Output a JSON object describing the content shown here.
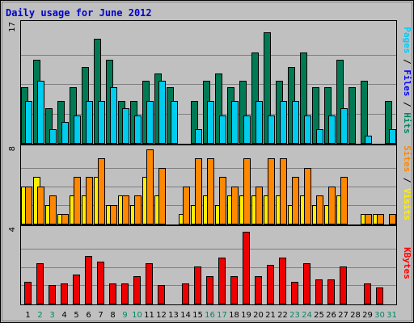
{
  "chart_data": {
    "type": "bar",
    "title": "Daily usage for June 2012",
    "categories": [
      "1",
      "2",
      "3",
      "4",
      "5",
      "6",
      "7",
      "8",
      "9",
      "10",
      "11",
      "12",
      "13",
      "14",
      "15",
      "16",
      "17",
      "18",
      "19",
      "20",
      "21",
      "22",
      "23",
      "24",
      "25",
      "26",
      "27",
      "28",
      "29",
      "30",
      "31"
    ],
    "weekend_days": [
      "2",
      "3",
      "9",
      "10",
      "16",
      "17",
      "23",
      "24",
      "30",
      "31"
    ],
    "panels": [
      {
        "name": "hits-files-pages",
        "ymax_label": "17",
        "ylim": [
          0,
          17
        ],
        "axis_label_parts": [
          {
            "text": "Pages",
            "color": "#00ccff"
          },
          {
            "text": " / ",
            "color": "#000000"
          },
          {
            "text": "Files",
            "color": "#0000ff"
          },
          {
            "text": " / ",
            "color": "#000000"
          },
          {
            "text": "Hits",
            "color": "#008866"
          }
        ],
        "series": [
          {
            "key": "hits",
            "color": "#007a55",
            "values": [
              8,
              12,
              5,
              6,
              8,
              11,
              15,
              12,
              6,
              6,
              9,
              10,
              8,
              0,
              6,
              9,
              10,
              8,
              9,
              13,
              16,
              9,
              11,
              13,
              8,
              8,
              12,
              8,
              9,
              0,
              6
            ]
          },
          {
            "key": "files",
            "color": "#00ccee",
            "values": [
              6,
              9,
              2,
              3,
              4,
              6,
              6,
              8,
              5,
              4,
              6,
              9,
              6,
              0,
              2,
              6,
              4,
              6,
              4,
              6,
              4,
              6,
              6,
              4,
              2,
              4,
              5,
              0,
              1,
              0,
              2
            ]
          }
        ]
      },
      {
        "name": "visits-sites",
        "ymax_label": "8",
        "ylim": [
          0,
          8
        ],
        "axis_label_parts": [
          {
            "text": "Sites",
            "color": "#ff8800"
          },
          {
            "text": " / ",
            "color": "#000000"
          },
          {
            "text": "Visits",
            "color": "#ffee00"
          }
        ],
        "series": [
          {
            "key": "visits",
            "color": "#ffee00",
            "values": [
              4,
              5,
              2,
              1,
              3,
              3,
              5,
              2,
              3,
              2,
              5,
              3,
              0,
              1,
              2,
              3,
              2,
              3,
              3,
              3,
              3,
              3,
              2,
              3,
              2,
              2,
              3,
              0,
              1,
              1,
              0
            ]
          },
          {
            "key": "sites",
            "color": "#ff8800",
            "values": [
              4,
              4,
              3,
              1,
              5,
              5,
              7,
              2,
              3,
              3,
              8,
              6,
              0,
              4,
              7,
              7,
              5,
              4,
              7,
              4,
              7,
              7,
              5,
              6,
              3,
              4,
              5,
              0,
              1,
              1,
              1
            ]
          }
        ]
      },
      {
        "name": "kbytes",
        "ymax_label": "4",
        "ylim": [
          0,
          4
        ],
        "axis_label_parts": [
          {
            "text": "KBytes",
            "color": "#ff0000"
          }
        ],
        "series": [
          {
            "key": "kbytes",
            "color": "#ee0000",
            "values": [
              1.2,
              2.2,
              1.0,
              1.1,
              1.6,
              2.6,
              2.3,
              1.1,
              1.1,
              1.5,
              2.2,
              1.0,
              0.0,
              1.1,
              2.0,
              1.5,
              2.5,
              1.5,
              3.9,
              1.5,
              2.1,
              2.5,
              1.2,
              2.2,
              1.3,
              1.3,
              2.0,
              0.0,
              1.1,
              0.9,
              0.0
            ]
          }
        ]
      }
    ],
    "colors": {
      "background": "#c0c0c0",
      "plot_background": "#c0c0c0",
      "gridline": "#808080",
      "title": "#0000cc",
      "weekday_label": "#000000",
      "weekend_label": "#008866"
    }
  }
}
